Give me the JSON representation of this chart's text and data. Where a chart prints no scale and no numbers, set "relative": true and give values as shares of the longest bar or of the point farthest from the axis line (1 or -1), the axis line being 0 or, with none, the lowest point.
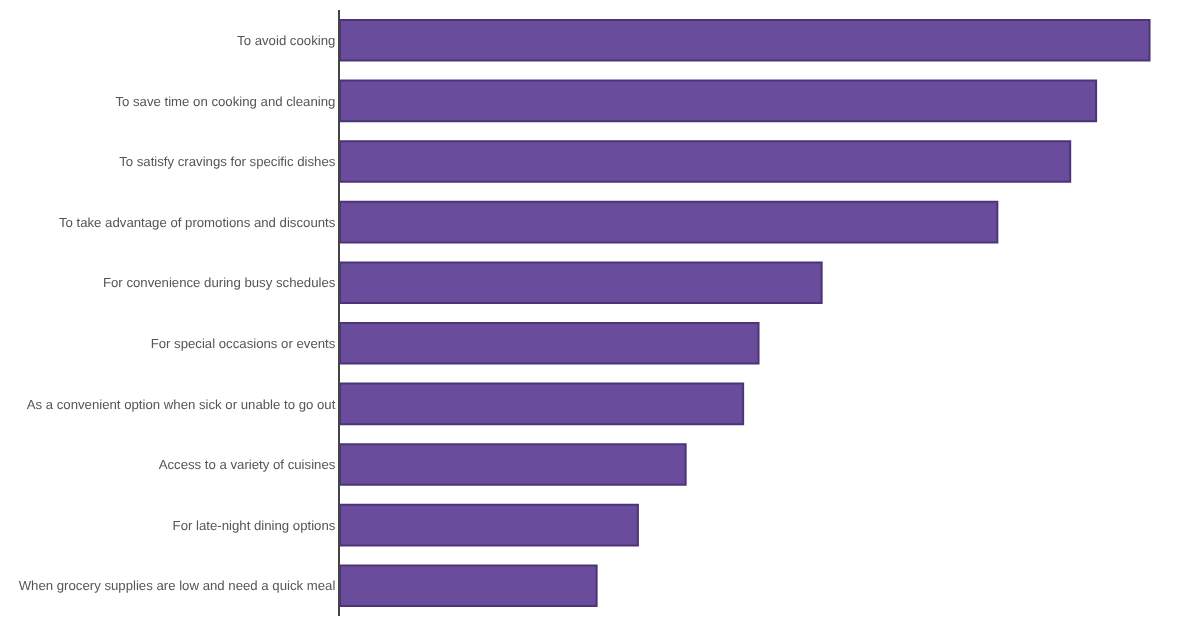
{
  "chart_data": {
    "type": "bar",
    "orientation": "horizontal",
    "relative": true,
    "categories": [
      "To avoid cooking",
      "To save time on cooking and cleaning",
      "To satisfy cravings for specific dishes",
      "To take advantage of promotions and discounts",
      "For convenience during busy schedules",
      "For special occasions or events",
      "As a convenient option when sick or unable to go out",
      "Access to a variety of cuisines",
      "For late-night dining options",
      "When grocery supplies are low and need a quick meal"
    ],
    "values": [
      1,
      0.934,
      0.902,
      0.812,
      0.595,
      0.517,
      0.498,
      0.427,
      0.368,
      0.317
    ],
    "color": "#6a4c9c"
  }
}
